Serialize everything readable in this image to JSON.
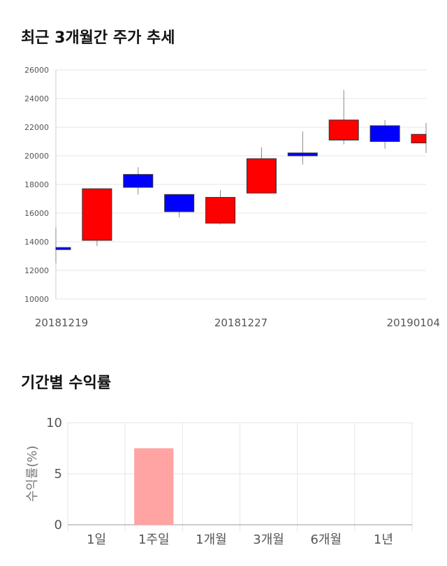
{
  "section1": {
    "title": "최근 3개월간 주가 추세"
  },
  "section2": {
    "title": "기간별 수익률"
  },
  "chart_data": [
    {
      "type": "candlestick",
      "title": "최근 3개월간 주가 추세",
      "ylim": [
        10000,
        26000
      ],
      "yticks": [
        10000,
        12000,
        14000,
        16000,
        18000,
        20000,
        22000,
        24000,
        26000
      ],
      "x_tick_labels": [
        "20181219",
        "20181227",
        "20190104"
      ],
      "grid": true,
      "up_color": "#ff0000",
      "down_color": "#0000ff",
      "candles": [
        {
          "open": 13600,
          "close": 13500,
          "high": 15000,
          "low": 12500
        },
        {
          "open": 14100,
          "close": 17700,
          "high": 17700,
          "low": 13700
        },
        {
          "open": 18700,
          "close": 17800,
          "high": 19200,
          "low": 17300
        },
        {
          "open": 17300,
          "close": 16100,
          "high": 17300,
          "low": 15700
        },
        {
          "open": 15300,
          "close": 17100,
          "high": 17600,
          "low": 15200
        },
        {
          "open": 17400,
          "close": 19800,
          "high": 20600,
          "low": 17400
        },
        {
          "open": 20200,
          "close": 20000,
          "high": 21700,
          "low": 19400
        },
        {
          "open": 21100,
          "close": 22500,
          "high": 24600,
          "low": 20800
        },
        {
          "open": 22100,
          "close": 21000,
          "high": 22500,
          "low": 20500
        },
        {
          "open": 20900,
          "close": 21500,
          "high": 22300,
          "low": 20200
        }
      ]
    },
    {
      "type": "bar",
      "title": "기간별 수익률",
      "ylabel": "수익률(%)",
      "ylim": [
        0,
        10
      ],
      "yticks": [
        0,
        5,
        10
      ],
      "categories": [
        "1일",
        "1주일",
        "1개월",
        "3개월",
        "6개월",
        "1년"
      ],
      "values": [
        null,
        7.5,
        null,
        null,
        null,
        null
      ],
      "bar_color": "#ffa3a3",
      "grid": true
    }
  ]
}
